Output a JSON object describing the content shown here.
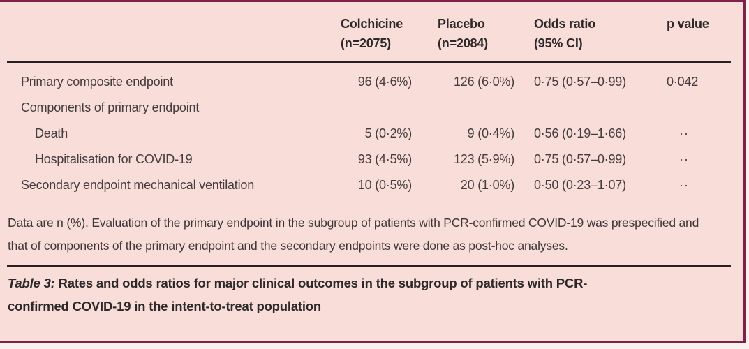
{
  "table": {
    "header": {
      "study_label": "",
      "colchicine": "Colchicine\n(n=2075)",
      "placebo": "Placebo\n(n=2084)",
      "odds_ratio": "Odds ratio\n(95% CI)",
      "p_value": "p value"
    },
    "rows": [
      {
        "label": "Primary composite endpoint",
        "colchicine": "96 (4·6%)",
        "placebo": "126 (6·0%)",
        "odds_ratio": "0·75 (0·57–0·99)",
        "p_value": "0·042"
      },
      {
        "label": "Components of primary endpoint",
        "colchicine": "",
        "placebo": "",
        "odds_ratio": "",
        "p_value": ""
      },
      {
        "label": "Death",
        "colchicine": "5 (0·2%)",
        "placebo": "9 (0·4%)",
        "odds_ratio": "0·56 (0·19–1·66)",
        "p_value": "··"
      },
      {
        "label": "Hospitalisation for COVID-19",
        "colchicine": "93 (4·5%)",
        "placebo": "123 (5·9%)",
        "odds_ratio": "0·75 (0·57–0·99)",
        "p_value": "··"
      },
      {
        "label": "Secondary endpoint mechanical ventilation",
        "colchicine": "10 (0·5%)",
        "placebo": "20 (1·0%)",
        "odds_ratio": "0·50 (0·23–1·07)",
        "p_value": "··"
      }
    ],
    "footnote": "Data are n (%). Evaluation of the primary endpoint in the subgroup of patients with PCR-confirmed COVID-19 was prespecified and that of components of the primary endpoint and the secondary endpoints were done as post-hoc analyses.",
    "caption_label": "Table 3:",
    "caption_text": "Rates and odds ratios for major clinical outcomes in the subgroup of patients with PCR-confirmed COVID-19 in the intent-to-treat population"
  },
  "colors": {
    "card_background": "#f8ddd8",
    "border": "#7d2248",
    "rule": "#2a2023",
    "heading_text": "#2d282a",
    "body_text": "#443c3e"
  }
}
